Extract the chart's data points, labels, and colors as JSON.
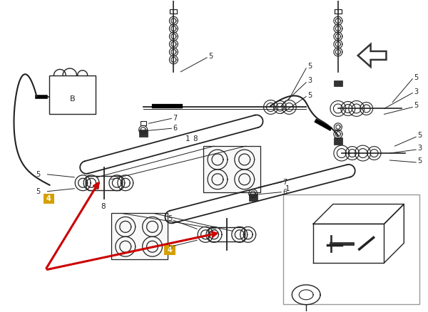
{
  "bg": "#ffffff",
  "lc": "#222222",
  "lc_gray": "#888888",
  "red": "#cc0000",
  "orange": "#D4A000",
  "fig_w": 6.0,
  "fig_h": 4.38,
  "dpi": 100
}
